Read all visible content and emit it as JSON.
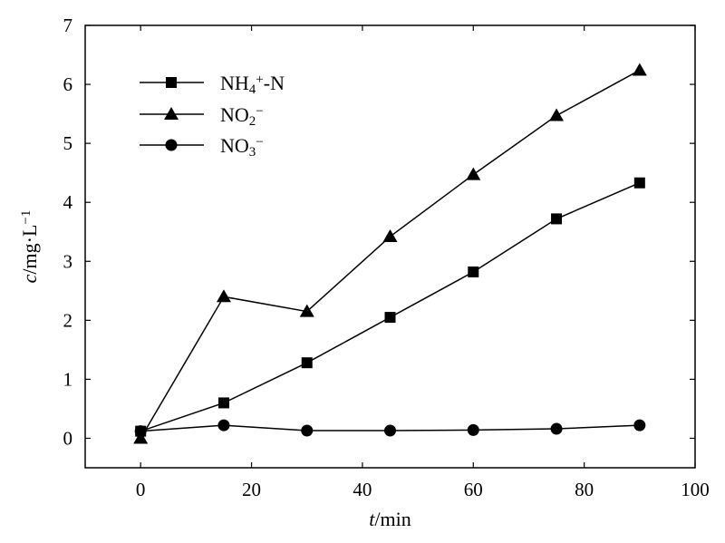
{
  "chart_data": {
    "type": "line",
    "x": [
      0,
      15,
      30,
      45,
      60,
      75,
      90
    ],
    "xlim": [
      -10,
      100
    ],
    "ylim": [
      -0.5,
      7
    ],
    "xticks": [
      "0",
      "20",
      "40",
      "60",
      "80",
      "100"
    ],
    "yticks": [
      "0",
      "1",
      "2",
      "3",
      "4",
      "5",
      "6",
      "7"
    ],
    "xtick_values": [
      0,
      20,
      40,
      60,
      80,
      100
    ],
    "ytick_values": [
      0,
      1,
      2,
      3,
      4,
      5,
      6,
      7
    ],
    "xlabel": {
      "italic": "t",
      "rest": "/min"
    },
    "ylabel": {
      "italic": "c",
      "rest": "/mg·L",
      "sup": "−1"
    },
    "grid": false,
    "legend_position": "top-left",
    "series": [
      {
        "name": "NH4+-N",
        "label_parts": [
          [
            "NH",
            ""
          ],
          [
            "4",
            "sub"
          ],
          [
            "+",
            "sup"
          ],
          [
            "-N",
            ""
          ]
        ],
        "marker": "square",
        "values": [
          0.12,
          0.6,
          1.28,
          2.05,
          2.82,
          3.72,
          4.33
        ]
      },
      {
        "name": "NO2−",
        "label_parts": [
          [
            "NO",
            ""
          ],
          [
            "2",
            "sub"
          ],
          [
            "−",
            "sup"
          ]
        ],
        "marker": "triangle",
        "values": [
          0.0,
          2.4,
          2.15,
          3.42,
          4.47,
          5.47,
          6.24
        ]
      },
      {
        "name": "NO3−",
        "label_parts": [
          [
            "NO",
            ""
          ],
          [
            "3",
            "sub"
          ],
          [
            "−",
            "sup"
          ]
        ],
        "marker": "circle",
        "values": [
          0.12,
          0.22,
          0.13,
          0.13,
          0.14,
          0.16,
          0.22
        ]
      }
    ]
  },
  "colors": {
    "line": "#000000",
    "marker": "#000000",
    "background": "#ffffff"
  }
}
